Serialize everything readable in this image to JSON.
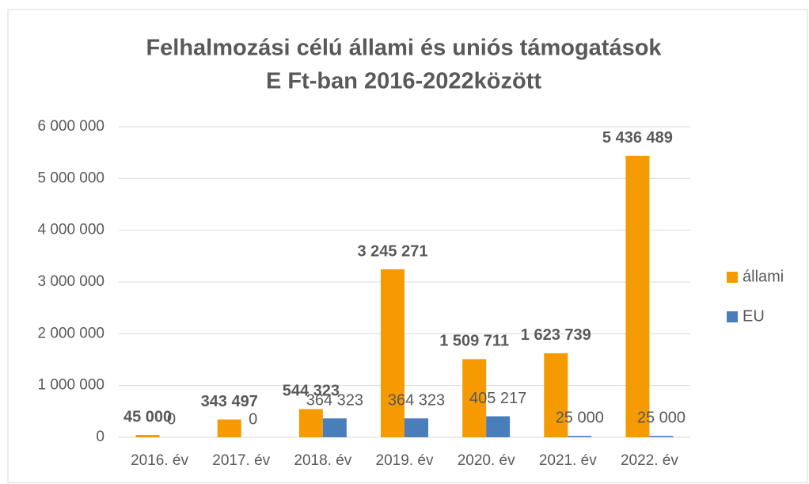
{
  "chart_data": {
    "type": "bar",
    "title": [
      "Felhalmozási célú állami és uniós támogatások",
      "E Ft-ban 2016-2022között"
    ],
    "categories": [
      "2016. év",
      "2017. év",
      "2018. év",
      "2019. év",
      "2020. év",
      "2021. év",
      "2022. év"
    ],
    "series": [
      {
        "name": "állami",
        "color": "#f59a00",
        "values": [
          45000,
          343497,
          544323,
          3245271,
          1509711,
          1623739,
          5436489
        ],
        "value_labels": [
          "45 000",
          "343 497",
          "544 323",
          "3 245 271",
          "1 509 711",
          "1 623 739",
          "5 436 489"
        ]
      },
      {
        "name": "EU",
        "color": "#4a7ebb",
        "values": [
          0,
          0,
          364323,
          364323,
          405217,
          25000,
          25000
        ],
        "value_labels": [
          "0",
          "0",
          "364 323",
          "364 323",
          "405 217",
          "25 000",
          "25 000"
        ]
      }
    ],
    "ylim": [
      0,
      6000000
    ],
    "yticks": [
      0,
      {
        "value": 1000000,
        "label": "1 000 000"
      },
      {
        "value": 2000000,
        "label": "2 000 000"
      },
      {
        "value": 3000000,
        "label": "3 000 000"
      },
      {
        "value": 4000000,
        "label": "4 000 000"
      },
      {
        "value": 5000000,
        "label": "5 000 000"
      },
      {
        "value": 6000000,
        "label": "6 000 000"
      }
    ],
    "grid": true,
    "legend": "right"
  }
}
